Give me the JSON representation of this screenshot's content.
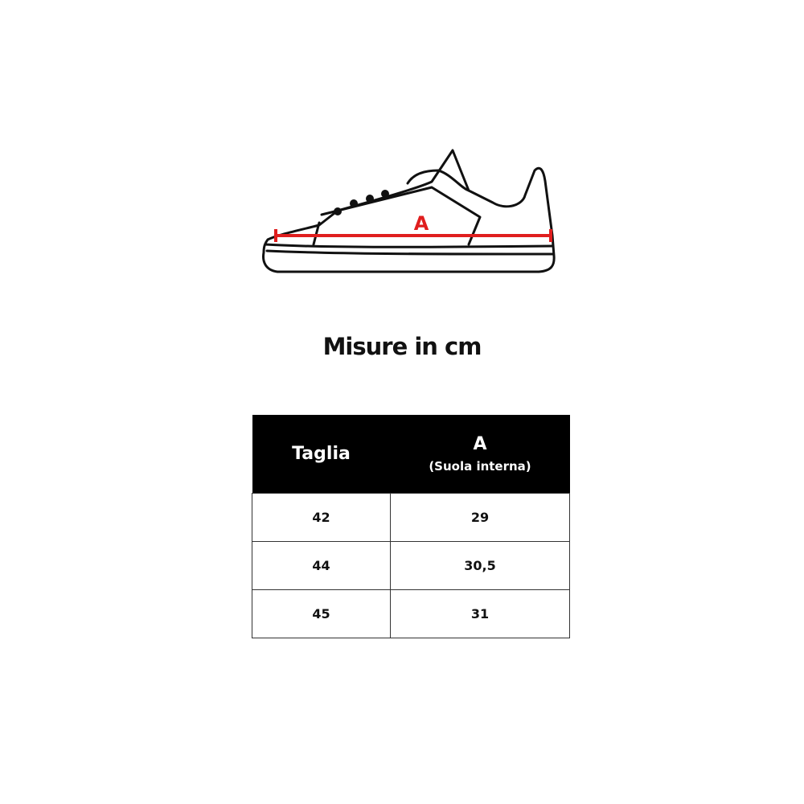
{
  "diagram": {
    "measure_label": "A",
    "measure_color": "#e01e1e"
  },
  "title": "Misure in cm",
  "table": {
    "headers": {
      "size": "Taglia",
      "a": "A",
      "a_sub": "(Suola interna)"
    },
    "rows": [
      {
        "size": "42",
        "a": "29"
      },
      {
        "size": "44",
        "a": "30,5"
      },
      {
        "size": "45",
        "a": "31"
      }
    ]
  }
}
